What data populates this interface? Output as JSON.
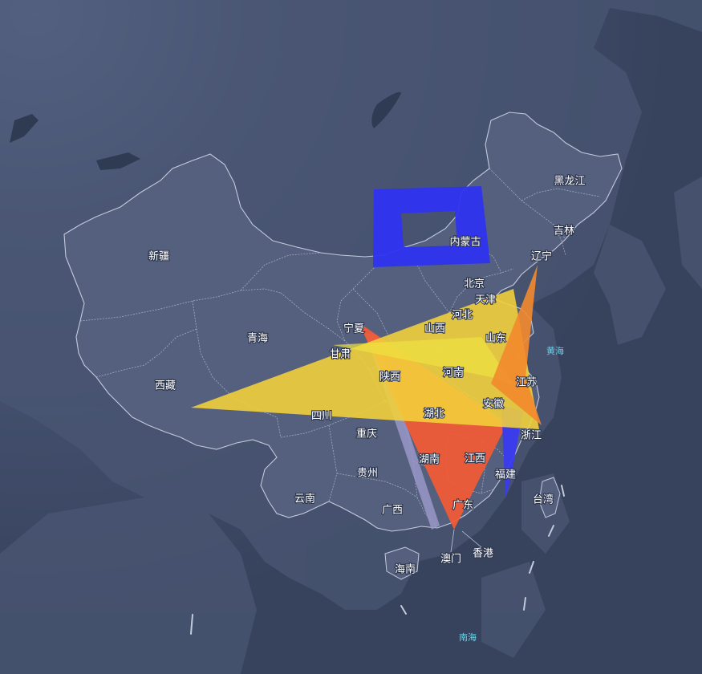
{
  "colors": {
    "ocean": "#39465f",
    "land": "#4d5975",
    "border": "#b8c0d6",
    "label": "#ffffff",
    "sea_label": "#6fd0e6"
  },
  "labels": {
    "xinjiang": "新疆",
    "xizang": "西藏",
    "qinghai": "青海",
    "gansu": "甘肃",
    "ningxia": "宁夏",
    "neimenggu": "内蒙古",
    "heilongjiang": "黑龙江",
    "jilin": "吉林",
    "liaoning": "辽宁",
    "beijing": "北京",
    "tianjin": "天津",
    "hebei": "河北",
    "shanxi": "山西",
    "shandong": "山东",
    "shaanxi": "陕西",
    "henan": "河南",
    "sichuan": "四川",
    "chongqing": "重庆",
    "hubei": "湖北",
    "anhui": "安徽",
    "jiangsu": "江苏",
    "zhejiang": "浙江",
    "hunan": "湖南",
    "jiangxi": "江西",
    "fujian": "福建",
    "taiwan": "台湾",
    "guizhou": "贵州",
    "yunnan": "云南",
    "guangxi": "广西",
    "guangdong": "广东",
    "aomen": "澳门",
    "xianggang": "香港",
    "hainan": "海南"
  },
  "seas": {
    "huanghai": "黄海",
    "nanhai": "南海"
  },
  "overlays": [
    {
      "name": "blue-frame",
      "color": "#2f33f0"
    },
    {
      "name": "red-triangle",
      "color": "#f25a36"
    },
    {
      "name": "orange-wedge",
      "color": "#f38a2e"
    },
    {
      "name": "yellow-fan",
      "color": "#f4d23a"
    },
    {
      "name": "yellow-wing",
      "color": "#eee240"
    },
    {
      "name": "blue-sliver",
      "color": "#3a3af0"
    },
    {
      "name": "lilac-sliver",
      "color": "#9a98c8"
    }
  ]
}
